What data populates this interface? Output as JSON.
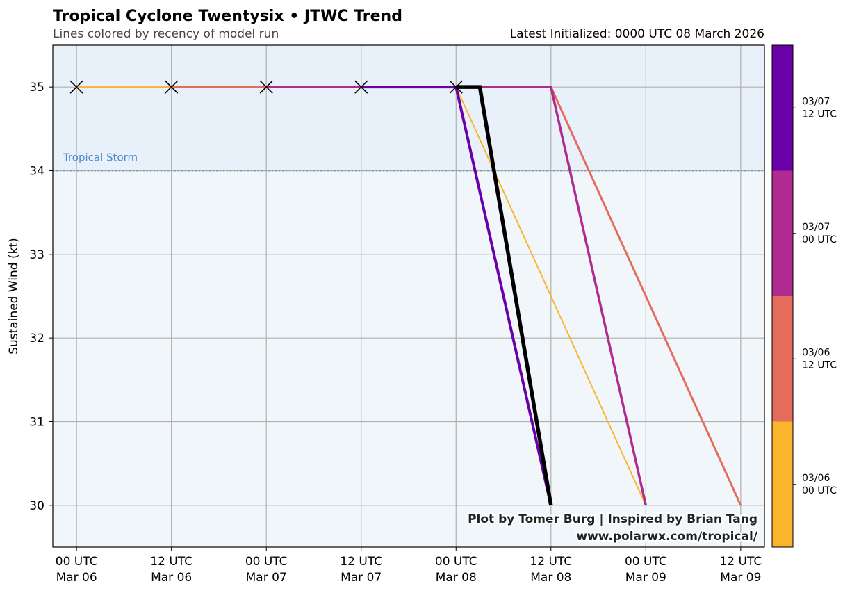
{
  "chart_data": {
    "type": "line",
    "title": "Tropical Cyclone Twentysix • JTWC Trend",
    "subtitle": "Lines colored by recency of model run",
    "latest": "Latest Initialized: 0000 UTC 08 March 2026",
    "ylabel": "Sustained Wind (kt)",
    "xlabel": "",
    "xlim_hours": [
      -3,
      87
    ],
    "ylim": [
      29.5,
      35.5
    ],
    "yticks": [
      30,
      31,
      32,
      33,
      34,
      35
    ],
    "xticks": [
      {
        "hour": 0,
        "l1": "00 UTC",
        "l2": "Mar 06"
      },
      {
        "hour": 12,
        "l1": "12 UTC",
        "l2": "Mar 06"
      },
      {
        "hour": 24,
        "l1": "00 UTC",
        "l2": "Mar 07"
      },
      {
        "hour": 36,
        "l1": "12 UTC",
        "l2": "Mar 07"
      },
      {
        "hour": 48,
        "l1": "00 UTC",
        "l2": "Mar 08"
      },
      {
        "hour": 60,
        "l1": "12 UTC",
        "l2": "Mar 08"
      },
      {
        "hour": 72,
        "l1": "00 UTC",
        "l2": "Mar 09"
      },
      {
        "hour": 84,
        "l1": "12 UTC",
        "l2": "Mar 09"
      }
    ],
    "grid": true,
    "threshold": {
      "value": 34,
      "label": "Tropical Storm",
      "shade": "#e8f1f9",
      "line_color": "#7a9cc0",
      "label_color": "#4a8ad0"
    },
    "below_shade": "#f1f6fb",
    "series": [
      {
        "name": "03/06 00 UTC",
        "color": "#fbb52c",
        "width": 2,
        "points": [
          [
            0,
            35
          ],
          [
            48,
            35
          ],
          [
            72,
            30
          ]
        ]
      },
      {
        "name": "03/06 12 UTC",
        "color": "#e56b5d",
        "width": 3,
        "points": [
          [
            12,
            35
          ],
          [
            60,
            35
          ],
          [
            84,
            30
          ]
        ]
      },
      {
        "name": "03/07 00 UTC",
        "color": "#b02b8f",
        "width": 3.5,
        "points": [
          [
            24,
            35
          ],
          [
            60,
            35
          ],
          [
            72,
            30
          ]
        ]
      },
      {
        "name": "03/07 12 UTC",
        "color": "#6a00a8",
        "width": 4,
        "points": [
          [
            36,
            35
          ],
          [
            48,
            35
          ],
          [
            60,
            30
          ]
        ]
      },
      {
        "name": "Latest 03/08 00 UTC",
        "color": "#000000",
        "width": 5.5,
        "points": [
          [
            48,
            35
          ],
          [
            51,
            35
          ],
          [
            60,
            30
          ]
        ]
      }
    ],
    "observed_markers": [
      [
        0,
        35
      ],
      [
        12,
        35
      ],
      [
        24,
        35
      ],
      [
        36,
        35
      ],
      [
        48,
        35
      ]
    ],
    "colorbar": [
      {
        "l1": "03/06",
        "l2": "00 UTC",
        "color": "#fbb52c"
      },
      {
        "l1": "03/06",
        "l2": "12 UTC",
        "color": "#e56b5d"
      },
      {
        "l1": "03/07",
        "l2": "00 UTC",
        "color": "#b02b8f"
      },
      {
        "l1": "03/07",
        "l2": "12 UTC",
        "color": "#6a00a8"
      }
    ],
    "credit1": "Plot by Tomer Burg | Inspired by Brian Tang",
    "credit2": "www.polarwx.com/tropical/"
  }
}
